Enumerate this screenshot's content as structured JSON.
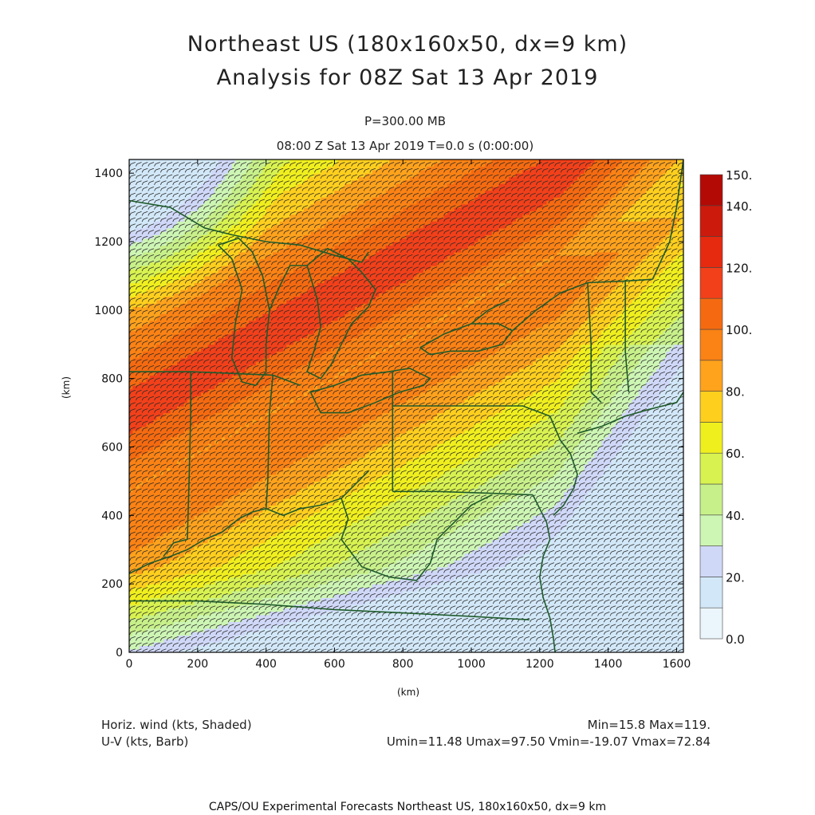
{
  "title": {
    "line1": "Northeast US (180x160x50, dx=9 km)",
    "line2": "Analysis for 08Z Sat 13 Apr 2019"
  },
  "level_label": "P=300.00 MB",
  "time_label": "08:00 Z Sat 13 Apr 2019    T=0.0 s (0:00:00)",
  "axes": {
    "x_label": "(km)",
    "y_label": "(km)",
    "x_ticks": [
      "0",
      "200",
      "400",
      "600",
      "800",
      "1000",
      "1200",
      "1400",
      "1600"
    ],
    "y_ticks": [
      "0",
      "200",
      "400",
      "600",
      "800",
      "1000",
      "1200",
      "1400"
    ],
    "x_range": [
      0,
      1620
    ],
    "y_range": [
      0,
      1440
    ]
  },
  "colorbar": {
    "labels": [
      "0.0",
      "20.",
      "40.",
      "60.",
      "80.",
      "100.",
      "120.",
      "140.",
      "150."
    ],
    "levels": [
      0,
      10,
      20,
      30,
      40,
      50,
      60,
      70,
      80,
      90,
      100,
      110,
      120,
      130,
      140,
      150
    ],
    "colors": [
      "#eaf6fb",
      "#d2e8f8",
      "#d0d8f8",
      "#cdf5b4",
      "#c8f08a",
      "#d8f250",
      "#f0ef1e",
      "#ffcf1e",
      "#ffa21c",
      "#fb8214",
      "#f56a10",
      "#f2401a",
      "#e52a10",
      "#cc1a0c",
      "#b30a06"
    ],
    "units": "kts"
  },
  "footer": {
    "field_label": "Horiz. wind (kts, Shaded)",
    "vector_label": "U-V (kts, Barb)",
    "minmax": "Min=15.8 Max=119.",
    "uv_stats": "Umin=11.48 Umax=97.50 Vmin=-19.07 Vmax=72.84",
    "credit": "CAPS/OU Experimental Forecasts  Northeast US, 180x160x50, dx=9 km"
  },
  "colors": {
    "boundary": "#1f5a2a",
    "barb": "#2a2a2a",
    "frame": "#000000"
  }
}
